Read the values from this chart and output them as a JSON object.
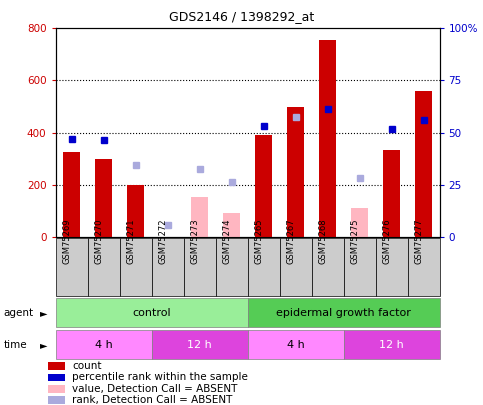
{
  "title": "GDS2146 / 1398292_at",
  "samples": [
    "GSM75269",
    "GSM75270",
    "GSM75271",
    "GSM75272",
    "GSM75273",
    "GSM75274",
    "GSM75265",
    "GSM75267",
    "GSM75268",
    "GSM75275",
    "GSM75276",
    "GSM75277"
  ],
  "count_values": [
    325,
    300,
    200,
    null,
    null,
    null,
    390,
    500,
    755,
    null,
    335,
    560
  ],
  "count_absent": [
    null,
    null,
    null,
    null,
    155,
    90,
    null,
    null,
    null,
    110,
    null,
    null
  ],
  "percentile_present": [
    375,
    370,
    null,
    null,
    null,
    null,
    425,
    null,
    490,
    null,
    415,
    450
  ],
  "percentile_absent": [
    null,
    null,
    275,
    45,
    260,
    210,
    null,
    460,
    null,
    225,
    null,
    null
  ],
  "ylim_left": [
    0,
    800
  ],
  "ylim_right": [
    0,
    100
  ],
  "yticks_left": [
    0,
    200,
    400,
    600,
    800
  ],
  "yticks_right": [
    0,
    25,
    50,
    75,
    100
  ],
  "ytick_labels_right": [
    "0",
    "25",
    "50",
    "75",
    "100%"
  ],
  "time_groups": [
    {
      "label": "4 h",
      "start": 0,
      "end": 3,
      "color": "#FF88FF"
    },
    {
      "label": "12 h",
      "start": 3,
      "end": 6,
      "color": "#DD44DD"
    },
    {
      "label": "4 h",
      "start": 6,
      "end": 9,
      "color": "#FF88FF"
    },
    {
      "label": "12 h",
      "start": 9,
      "end": 12,
      "color": "#DD44DD"
    }
  ],
  "bar_color_present": "#CC0000",
  "bar_color_absent": "#FFB6C1",
  "dot_color_present": "#0000CC",
  "dot_color_absent": "#AAAADD",
  "bar_width": 0.55,
  "plot_bg_color": "#FFFFFF",
  "label_bg_color": "#CCCCCC",
  "agent_color_light": "#99EE99",
  "agent_color_dark": "#55CC55",
  "legend_items": [
    {
      "label": "count",
      "color": "#CC0000"
    },
    {
      "label": "percentile rank within the sample",
      "color": "#0000CC"
    },
    {
      "label": "value, Detection Call = ABSENT",
      "color": "#FFB6C1"
    },
    {
      "label": "rank, Detection Call = ABSENT",
      "color": "#AAAADD"
    }
  ]
}
